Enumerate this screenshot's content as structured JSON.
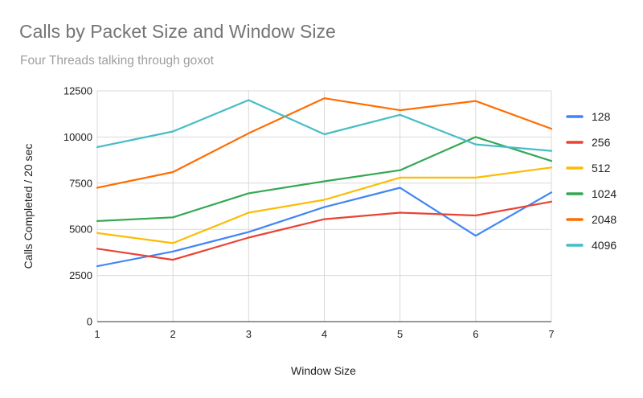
{
  "chart_data": {
    "type": "line",
    "title": "Calls by Packet Size and Window Size",
    "subtitle": "Four Threads talking through goxot",
    "xlabel": "Window Size",
    "ylabel": "Calls Completed / 20 sec",
    "x": [
      1,
      2,
      3,
      4,
      5,
      6,
      7
    ],
    "xlim": [
      1,
      7
    ],
    "ylim": [
      0,
      12500
    ],
    "yticks": [
      0,
      2500,
      5000,
      7500,
      10000,
      12500
    ],
    "grid": true,
    "legend_position": "right",
    "series": [
      {
        "name": "128",
        "color": "#4285f4",
        "values": [
          3000,
          3800,
          4850,
          6200,
          7250,
          4650,
          7000
        ]
      },
      {
        "name": "256",
        "color": "#ea4335",
        "values": [
          3950,
          3350,
          4550,
          5550,
          5900,
          5750,
          6500
        ]
      },
      {
        "name": "512",
        "color": "#fbbc04",
        "values": [
          4800,
          4250,
          5900,
          6600,
          7800,
          7800,
          8350
        ]
      },
      {
        "name": "1024",
        "color": "#34a853",
        "values": [
          5450,
          5650,
          6950,
          7600,
          8200,
          10000,
          8700
        ]
      },
      {
        "name": "2048",
        "color": "#ff6d01",
        "values": [
          7250,
          8100,
          10200,
          12100,
          11450,
          11950,
          10450
        ]
      },
      {
        "name": "4096",
        "color": "#46bdc6",
        "values": [
          9450,
          10300,
          12000,
          10150,
          11200,
          9600,
          9250
        ]
      }
    ]
  }
}
